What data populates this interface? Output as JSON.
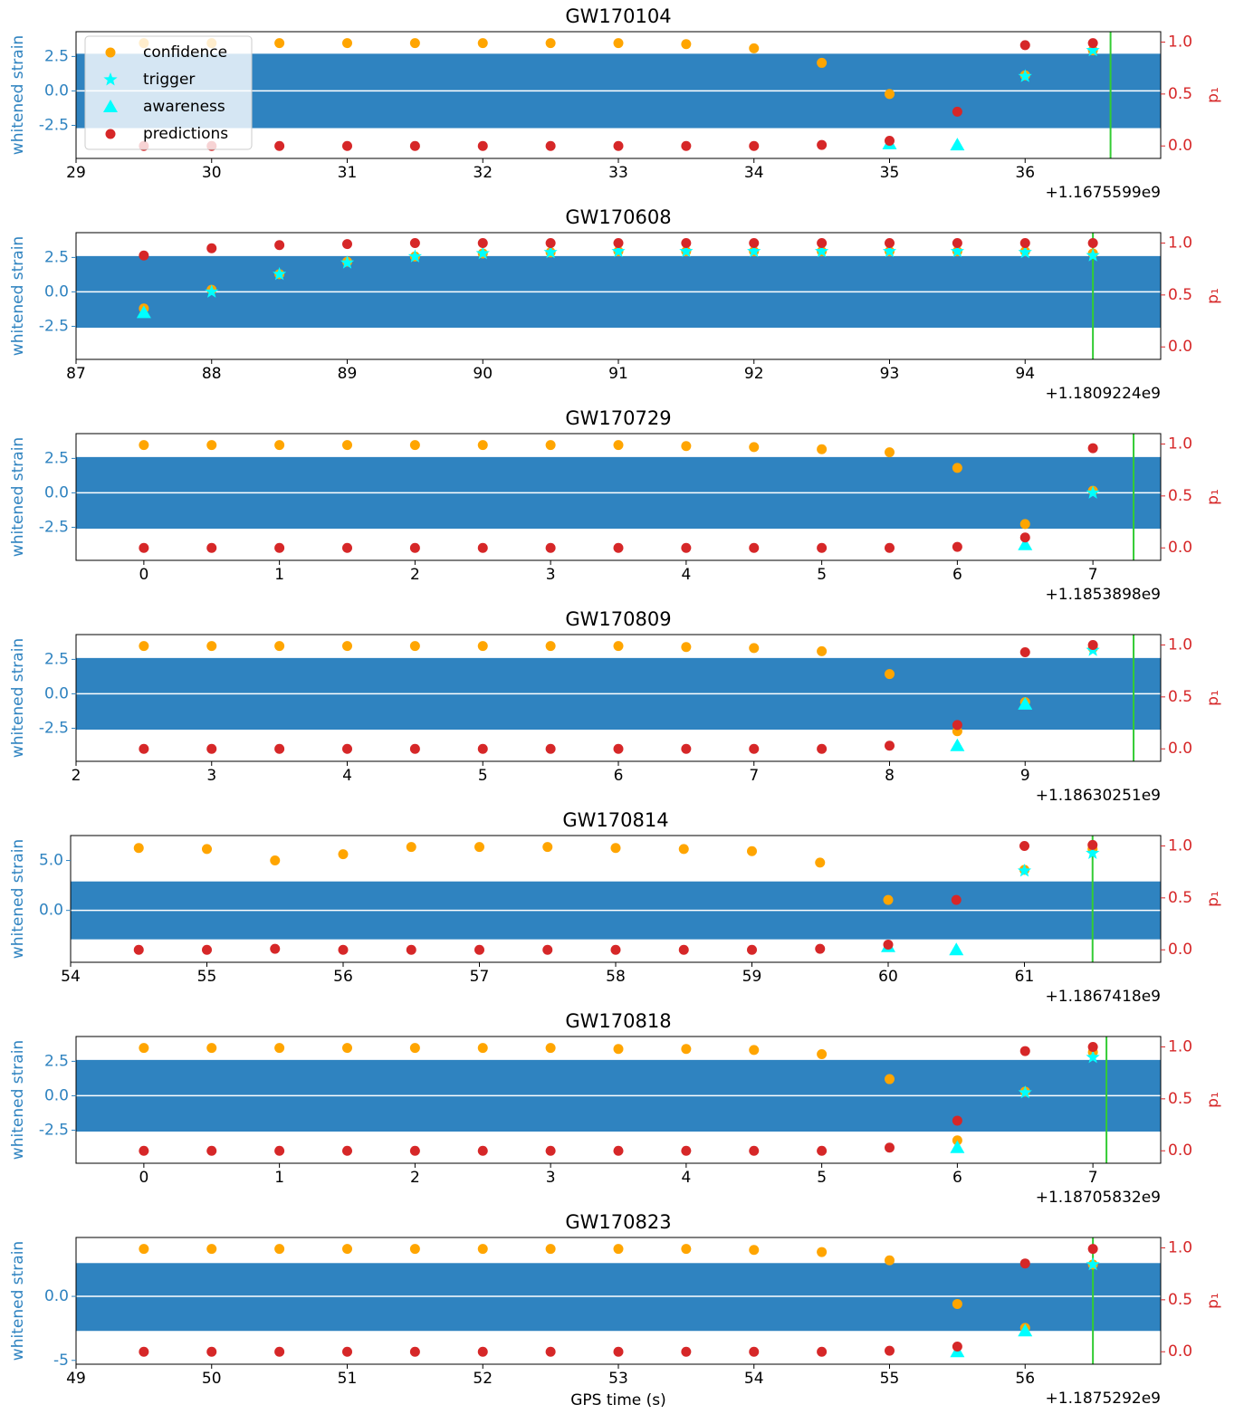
{
  "chart_data": [
    {
      "type": "scatter",
      "title": "GW170104",
      "ylabel": "whitened strain",
      "y2label": "p₁",
      "offset_text": "+1.1675599e9",
      "legend": "upper left",
      "xlim": [
        29,
        37
      ],
      "xticks": [
        29,
        30,
        31,
        32,
        33,
        34,
        35,
        36
      ],
      "ylim": [
        -4.9,
        4.3
      ],
      "yticks": [
        -2.5,
        {
          "value": 0,
          "label": "0.0"
        },
        2.5
      ],
      "y2lim": [
        -0.12,
        1.1
      ],
      "y2ticks": [
        {
          "value": 0,
          "label": "0.0"
        },
        {
          "value": 0.5,
          "label": "0.5"
        },
        {
          "value": 1,
          "label": "1.0"
        }
      ],
      "strain_range": [
        -2.7,
        2.7
      ],
      "strain_color": "#2f83c0",
      "merger": 36.63,
      "merger_color": "#33cc33",
      "x": [
        29.5,
        30,
        30.5,
        31,
        31.5,
        32,
        32.5,
        33,
        33.5,
        34,
        34.5,
        35,
        35.5,
        36,
        36.5
      ],
      "series": [
        {
          "name": "confidence",
          "color": "#ffa500",
          "axis": "y2",
          "values": [
            0.99,
            0.99,
            0.99,
            0.99,
            0.99,
            0.99,
            0.99,
            0.99,
            0.98,
            0.94,
            0.8,
            0.5,
            null,
            0.68,
            0.92
          ]
        },
        {
          "name": "trigger",
          "color": "#00ffff",
          "axis": "y2",
          "values": [
            null,
            null,
            null,
            null,
            null,
            null,
            null,
            null,
            null,
            null,
            null,
            null,
            null,
            0.67,
            0.92
          ]
        },
        {
          "name": "awareness",
          "color": "#00ffff",
          "axis": "y2",
          "values": [
            null,
            null,
            null,
            null,
            null,
            null,
            null,
            null,
            null,
            null,
            null,
            0.02,
            0.01,
            null,
            null
          ]
        },
        {
          "name": "predictions",
          "color": "#d62728",
          "axis": "y2",
          "values": [
            0,
            0,
            0,
            0,
            0,
            0,
            0,
            0,
            0,
            0,
            0.01,
            0.05,
            0.33,
            0.97,
            0.99
          ]
        }
      ]
    },
    {
      "type": "scatter",
      "title": "GW170608",
      "ylabel": "whitened strain",
      "y2label": "p₁",
      "offset_text": "+1.1809224e9",
      "xlim": [
        87,
        95
      ],
      "xticks": [
        87,
        88,
        89,
        90,
        91,
        92,
        93,
        94
      ],
      "ylim": [
        -4.9,
        4.3
      ],
      "yticks": [
        -2.5,
        {
          "value": 0,
          "label": "0.0"
        },
        2.5
      ],
      "y2lim": [
        -0.12,
        1.1
      ],
      "y2ticks": [
        {
          "value": 0,
          "label": "0.0"
        },
        {
          "value": 0.5,
          "label": "0.5"
        },
        {
          "value": 1,
          "label": "1.0"
        }
      ],
      "strain_range": [
        -2.6,
        2.6
      ],
      "strain_color": "#2f83c0",
      "merger": 94.5,
      "merger_color": "#33cc33",
      "x": [
        87.5,
        88,
        88.5,
        89,
        89.5,
        90,
        90.5,
        91,
        91.5,
        92,
        92.5,
        93,
        93.5,
        94,
        94.5
      ],
      "series": [
        {
          "color": "#ffa500",
          "axis": "y2",
          "values": [
            0.37,
            0.55,
            0.7,
            0.82,
            0.87,
            0.9,
            0.91,
            0.92,
            0.92,
            0.92,
            0.92,
            0.92,
            0.92,
            0.92,
            0.9
          ]
        },
        {
          "color": "#00ffff",
          "axis": "y2",
          "values": [
            null,
            0.53,
            0.7,
            0.81,
            0.87,
            0.9,
            0.91,
            0.92,
            0.92,
            0.92,
            0.92,
            0.92,
            0.92,
            0.91,
            0.88
          ]
        },
        {
          "color": "#00ffff",
          "axis": "y2",
          "values": [
            0.33,
            null,
            null,
            null,
            null,
            null,
            null,
            null,
            null,
            null,
            null,
            null,
            null,
            null,
            null
          ]
        },
        {
          "color": "#d62728",
          "axis": "y2",
          "values": [
            0.88,
            0.95,
            0.98,
            0.99,
            1.0,
            1.0,
            1.0,
            1.0,
            1.0,
            1.0,
            1.0,
            1.0,
            1.0,
            1.0,
            1.0
          ]
        }
      ]
    },
    {
      "type": "scatter",
      "title": "GW170729",
      "ylabel": "whitened strain",
      "y2label": "p₁",
      "offset_text": "+1.1853898e9",
      "xlim": [
        -0.5,
        7.5
      ],
      "xticks": [
        0,
        1,
        2,
        3,
        4,
        5,
        6,
        7
      ],
      "ylim": [
        -4.9,
        4.3
      ],
      "yticks": [
        -2.5,
        {
          "value": 0,
          "label": "0.0"
        },
        2.5
      ],
      "y2lim": [
        -0.12,
        1.1
      ],
      "y2ticks": [
        {
          "value": 0,
          "label": "0.0"
        },
        {
          "value": 0.5,
          "label": "0.5"
        },
        {
          "value": 1,
          "label": "1.0"
        }
      ],
      "strain_range": [
        -2.6,
        2.6
      ],
      "strain_color": "#2f83c0",
      "merger": 7.3,
      "merger_color": "#33cc33",
      "x": [
        0,
        0.5,
        1,
        1.5,
        2,
        2.5,
        3,
        3.5,
        4,
        4.5,
        5,
        5.5,
        6,
        6.5,
        7
      ],
      "series": [
        {
          "color": "#ffa500",
          "axis": "y2",
          "values": [
            0.99,
            0.99,
            0.99,
            0.99,
            0.99,
            0.99,
            0.99,
            0.99,
            0.98,
            0.97,
            0.95,
            0.92,
            0.77,
            0.23,
            0.55
          ]
        },
        {
          "color": "#00ffff",
          "axis": "y2",
          "values": [
            null,
            null,
            null,
            null,
            null,
            null,
            null,
            null,
            null,
            null,
            null,
            null,
            null,
            null,
            0.53
          ]
        },
        {
          "color": "#00ffff",
          "axis": "y2",
          "values": [
            null,
            null,
            null,
            null,
            null,
            null,
            null,
            null,
            null,
            null,
            null,
            null,
            null,
            0.03,
            null
          ]
        },
        {
          "color": "#d62728",
          "axis": "y2",
          "values": [
            0,
            0,
            0,
            0,
            0,
            0,
            0,
            0,
            0,
            0,
            0,
            0,
            0.01,
            0.1,
            0.96
          ]
        }
      ]
    },
    {
      "type": "scatter",
      "title": "GW170809",
      "ylabel": "whitened strain",
      "y2label": "p₁",
      "offset_text": "+1.18630251e9",
      "xlim": [
        2,
        10
      ],
      "xticks": [
        2,
        3,
        4,
        5,
        6,
        7,
        8,
        9
      ],
      "ylim": [
        -4.9,
        4.3
      ],
      "yticks": [
        -2.5,
        {
          "value": 0,
          "label": "0.0"
        },
        2.5
      ],
      "y2lim": [
        -0.12,
        1.1
      ],
      "y2ticks": [
        {
          "value": 0,
          "label": "0.0"
        },
        {
          "value": 0.5,
          "label": "0.5"
        },
        {
          "value": 1,
          "label": "1.0"
        }
      ],
      "strain_range": [
        -2.6,
        2.6
      ],
      "strain_color": "#2f83c0",
      "merger": 9.8,
      "merger_color": "#33cc33",
      "x": [
        2.5,
        3,
        3.5,
        4,
        4.5,
        5,
        5.5,
        6,
        6.5,
        7,
        7.5,
        8,
        8.5,
        9,
        9.5
      ],
      "series": [
        {
          "color": "#ffa500",
          "axis": "y2",
          "values": [
            0.99,
            0.99,
            0.99,
            0.99,
            0.99,
            0.99,
            0.99,
            0.99,
            0.98,
            0.97,
            0.94,
            0.72,
            0.17,
            0.45,
            0.97
          ]
        },
        {
          "color": "#00ffff",
          "axis": "y2",
          "values": [
            null,
            null,
            null,
            null,
            null,
            null,
            null,
            null,
            null,
            null,
            null,
            null,
            null,
            null,
            0.95
          ]
        },
        {
          "color": "#00ffff",
          "axis": "y2",
          "values": [
            null,
            null,
            null,
            null,
            null,
            null,
            null,
            null,
            null,
            null,
            null,
            null,
            0.03,
            0.43,
            null
          ]
        },
        {
          "color": "#d62728",
          "axis": "y2",
          "values": [
            0,
            0,
            0,
            0,
            0,
            0,
            0,
            0,
            0,
            0,
            0,
            0.03,
            0.23,
            0.93,
            1.0
          ]
        }
      ]
    },
    {
      "type": "scatter",
      "title": "GW170814",
      "ylabel": "whitened strain",
      "y2label": "p₁",
      "offset_text": "+1.1867418e9",
      "xlim": [
        54,
        62
      ],
      "xticks": [
        54,
        55,
        56,
        57,
        58,
        59,
        60,
        61
      ],
      "ylim": [
        -5.2,
        7.5
      ],
      "yticks": [
        {
          "value": 0,
          "label": "0.0"
        },
        {
          "value": 5,
          "label": "5.0"
        }
      ],
      "y2lim": [
        -0.12,
        1.1
      ],
      "y2ticks": [
        {
          "value": 0,
          "label": "0.0"
        },
        {
          "value": 0.5,
          "label": "0.5"
        },
        {
          "value": 1,
          "label": "1.0"
        }
      ],
      "strain_range": [
        -2.9,
        2.9
      ],
      "strain_color": "#2f83c0",
      "merger": 61.5,
      "merger_color": "#33cc33",
      "x": [
        54.5,
        55,
        55.5,
        56,
        56.5,
        57,
        57.5,
        58,
        58.5,
        59,
        59.5,
        60,
        60.5,
        61,
        61.5
      ],
      "series": [
        {
          "color": "#ffa500",
          "axis": "y2",
          "values": [
            0.98,
            0.97,
            0.86,
            0.92,
            0.99,
            0.99,
            0.99,
            0.98,
            0.97,
            0.95,
            0.84,
            0.48,
            null,
            0.77,
            0.97
          ]
        },
        {
          "color": "#00ffff",
          "axis": "y2",
          "values": [
            null,
            null,
            null,
            null,
            null,
            null,
            null,
            null,
            null,
            null,
            null,
            null,
            null,
            0.76,
            0.93
          ]
        },
        {
          "color": "#00ffff",
          "axis": "y2",
          "values": [
            null,
            null,
            null,
            null,
            null,
            null,
            null,
            null,
            null,
            null,
            null,
            0.03,
            0,
            null,
            null
          ]
        },
        {
          "color": "#d62728",
          "axis": "y2",
          "values": [
            0,
            0,
            0.01,
            0,
            0,
            0,
            0,
            0,
            0,
            0,
            0.01,
            0.05,
            0.48,
            1.0,
            1.01
          ]
        }
      ]
    },
    {
      "type": "scatter",
      "title": "GW170818",
      "ylabel": "whitened strain",
      "y2label": "p₁",
      "offset_text": "+1.18705832e9",
      "xlim": [
        -0.5,
        7.5
      ],
      "xticks": [
        0,
        1,
        2,
        3,
        4,
        5,
        6,
        7
      ],
      "ylim": [
        -4.9,
        4.3
      ],
      "yticks": [
        -2.5,
        {
          "value": 0,
          "label": "0.0"
        },
        2.5
      ],
      "y2lim": [
        -0.12,
        1.1
      ],
      "y2ticks": [
        {
          "value": 0,
          "label": "0.0"
        },
        {
          "value": 0.5,
          "label": "0.5"
        },
        {
          "value": 1,
          "label": "1.0"
        }
      ],
      "strain_range": [
        -2.6,
        2.6
      ],
      "strain_color": "#2f83c0",
      "merger": 7.1,
      "merger_color": "#33cc33",
      "x": [
        0,
        0.5,
        1,
        1.5,
        2,
        2.5,
        3,
        3.5,
        4,
        4.5,
        5,
        5.5,
        6,
        6.5,
        7
      ],
      "series": [
        {
          "color": "#ffa500",
          "axis": "y2",
          "values": [
            0.99,
            0.99,
            0.99,
            0.99,
            0.99,
            0.99,
            0.99,
            0.98,
            0.98,
            0.97,
            0.93,
            0.69,
            0.1,
            0.57,
            0.95
          ]
        },
        {
          "color": "#00ffff",
          "axis": "y2",
          "values": [
            null,
            null,
            null,
            null,
            null,
            null,
            null,
            null,
            null,
            null,
            null,
            null,
            null,
            0.56,
            0.9
          ]
        },
        {
          "color": "#00ffff",
          "axis": "y2",
          "values": [
            null,
            null,
            null,
            null,
            null,
            null,
            null,
            null,
            null,
            null,
            null,
            null,
            0.03,
            null,
            null
          ]
        },
        {
          "color": "#d62728",
          "axis": "y2",
          "values": [
            0,
            0,
            0,
            0,
            0,
            0,
            0,
            0,
            0,
            0,
            0,
            0.03,
            0.29,
            0.96,
            1.0
          ]
        }
      ]
    },
    {
      "type": "scatter",
      "title": "GW170823",
      "ylabel": "whitened strain",
      "y2label": "p₁",
      "xlabel": "GPS time (s)",
      "offset_text": "+1.1875292e9",
      "xlim": [
        49,
        57
      ],
      "xticks": [
        49,
        50,
        51,
        52,
        53,
        54,
        55,
        56
      ],
      "ylim": [
        -5.3,
        4.6
      ],
      "yticks": [
        -5.0,
        {
          "value": 0,
          "label": "0.0"
        }
      ],
      "y2lim": [
        -0.12,
        1.1
      ],
      "y2ticks": [
        {
          "value": 0,
          "label": "0.0"
        },
        {
          "value": 0.5,
          "label": "0.5"
        },
        {
          "value": 1,
          "label": "1.0"
        }
      ],
      "strain_range": [
        -2.7,
        2.6
      ],
      "strain_color": "#2f83c0",
      "merger": 56.5,
      "merger_color": "#33cc33",
      "x": [
        49.5,
        50,
        50.5,
        51,
        51.5,
        52,
        52.5,
        53,
        53.5,
        54,
        54.5,
        55,
        55.5,
        56,
        56.5
      ],
      "series": [
        {
          "color": "#ffa500",
          "axis": "y2",
          "values": [
            0.99,
            0.99,
            0.99,
            0.99,
            0.99,
            0.99,
            0.99,
            0.99,
            0.99,
            0.98,
            0.96,
            0.88,
            0.46,
            0.23,
            0.84
          ]
        },
        {
          "color": "#00ffff",
          "axis": "y2",
          "values": [
            null,
            null,
            null,
            null,
            null,
            null,
            null,
            null,
            null,
            null,
            null,
            null,
            null,
            null,
            0.84
          ]
        },
        {
          "color": "#00ffff",
          "axis": "y2",
          "values": [
            null,
            null,
            null,
            null,
            null,
            null,
            null,
            null,
            null,
            null,
            null,
            null,
            0,
            0.2,
            null
          ]
        },
        {
          "color": "#d62728",
          "axis": "y2",
          "values": [
            0,
            0,
            0,
            0,
            0,
            0,
            0,
            0,
            0,
            0,
            0,
            0.01,
            0.05,
            0.85,
            0.99
          ]
        }
      ]
    }
  ]
}
